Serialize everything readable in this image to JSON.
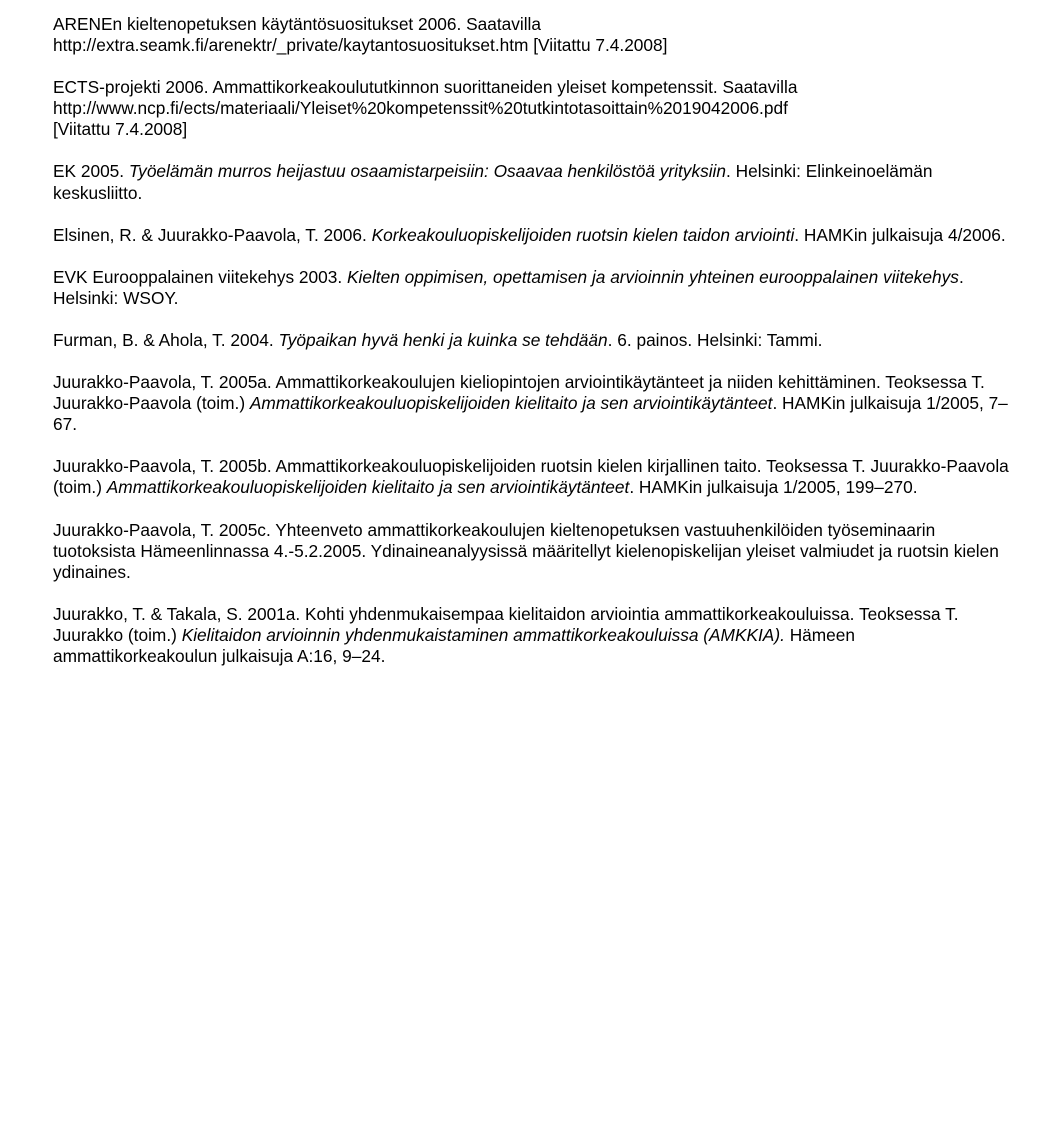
{
  "paragraphs": [
    {
      "spans": [
        {
          "text": "ARENEn kieltenopetuksen käytäntösuositukset 2006. Saatavilla http://extra.seamk.fi/arenektr/_private/kaytantosuositukset.htm [Viitattu 7.4.2008]"
        }
      ]
    },
    {
      "spans": [
        {
          "text": "ECTS-projekti 2006. Ammattikorkeakoulututkinnon suorittaneiden yleiset kompetenssit. Saatavilla http://www.ncp.fi/ects/materiaali/Yleiset%20kompetenssit%20tutkintotasoittain%2019042006.pdf"
        }
      ]
    },
    {
      "spans": [
        {
          "text": "[Viitattu 7.4.2008]"
        }
      ],
      "tight": true
    },
    {
      "spans": [
        {
          "text": "EK 2005. "
        },
        {
          "text": "Työelämän murros heijastuu osaamistarpeisiin: Osaavaa henkilöstöä yrityksiin",
          "italic": true
        },
        {
          "text": ". Helsinki: Elinkeinoelämän keskusliitto."
        }
      ]
    },
    {
      "spans": [
        {
          "text": "Elsinen, R. & Juurakko-Paavola, T. 2006. "
        },
        {
          "text": "Korkeakouluopiskelijoiden ruotsin kielen taidon arviointi",
          "italic": true
        },
        {
          "text": ". HAMKin julkaisuja 4/2006."
        }
      ]
    },
    {
      "spans": [
        {
          "text": "EVK Eurooppalainen viitekehys 2003. "
        },
        {
          "text": "Kielten oppimisen, opettamisen ja arvioinnin yhteinen eurooppalainen viitekehys",
          "italic": true
        },
        {
          "text": ". Helsinki: WSOY."
        }
      ]
    },
    {
      "spans": [
        {
          "text": "Furman, B. & Ahola, T. 2004. "
        },
        {
          "text": "Työpaikan hyvä henki ja kuinka se tehdään",
          "italic": true
        },
        {
          "text": ". 6. painos. Helsinki: Tammi."
        }
      ]
    },
    {
      "spans": [
        {
          "text": "Juurakko-Paavola, T. 2005a. Ammattikorkeakoulujen kieliopintojen arviointikäytänteet ja niiden kehittäminen. Teoksessa T. Juurakko-Paavola (toim.) "
        },
        {
          "text": "Ammattikorkeakouluopiskelijoiden kielitaito ja sen arviointikäytänteet",
          "italic": true
        },
        {
          "text": ". HAMKin julkaisuja 1/2005, 7–67."
        }
      ]
    },
    {
      "spans": [
        {
          "text": "Juurakko-Paavola, T. 2005b. Ammattikorkeakouluopiskelijoiden ruotsin kielen kirjallinen taito. Teoksessa T. Juurakko-Paavola (toim.) "
        },
        {
          "text": "Ammattikorkeakouluopiskelijoiden kielitaito ja sen arviointikäytänteet",
          "italic": true
        },
        {
          "text": ". HAMKin julkaisuja 1/2005, 199–270."
        }
      ]
    },
    {
      "spans": [
        {
          "text": "Juurakko-Paavola, T. 2005c. Yhteenveto ammattikorkeakoulujen kieltenopetuksen vastuuhenkilöiden työseminaarin tuotoksista Hämeenlinnassa 4.-5.2.2005. Ydinaineanalyysissä määritellyt kielenopiskelijan yleiset valmiudet ja ruotsin kielen ydinaines."
        }
      ]
    },
    {
      "spans": [
        {
          "text": "Juurakko, T. & Takala, S. 2001a. Kohti yhdenmukaisempaa kielitaidon arviointia ammattikorkeakouluissa. Teoksessa T. Juurakko (toim.) "
        },
        {
          "text": "Kielitaidon arvioinnin yhdenmukaistaminen ammattikorkeakouluissa (AMKKIA).",
          "italic": true
        },
        {
          "text": " Hämeen ammattikorkeakoulun julkaisuja A:16, 9–24."
        }
      ]
    }
  ]
}
